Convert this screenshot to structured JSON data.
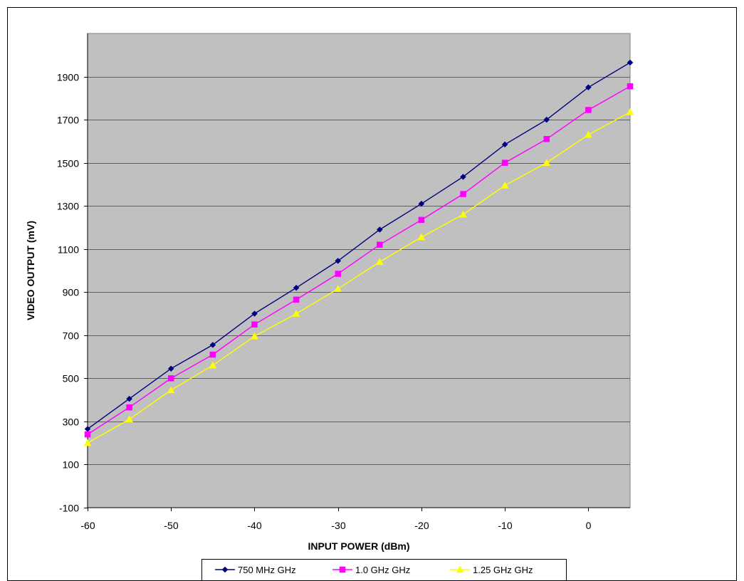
{
  "chart_data": {
    "type": "line",
    "title": "",
    "xlabel": "INPUT POWER (dBm)",
    "ylabel": "VIDEO OUTPUT (mV)",
    "xlim": [
      -60,
      5
    ],
    "ylim": [
      -100,
      2100
    ],
    "x_ticks": [
      -60,
      -50,
      -40,
      -30,
      -20,
      -10,
      0
    ],
    "y_ticks": [
      -100,
      100,
      300,
      500,
      700,
      900,
      1100,
      1300,
      1500,
      1700,
      1900
    ],
    "x_tick_labels": [
      "-60",
      "-50",
      "-40",
      "-30",
      "-20",
      "-10",
      "0"
    ],
    "y_tick_labels": [
      "-100",
      "100",
      "300",
      "500",
      "700",
      "900",
      "1100",
      "1300",
      "1500",
      "1700",
      "1900"
    ],
    "grid": "horizontal",
    "legend_position": "bottom",
    "plot_background": "#c0c0c0",
    "x": [
      -60,
      -55,
      -50,
      -45,
      -40,
      -35,
      -30,
      -25,
      -20,
      -15,
      -10,
      -5,
      0,
      5
    ],
    "series": [
      {
        "name": "750 MHz GHz",
        "color": "#000080",
        "marker": "diamond",
        "values": [
          265,
          405,
          545,
          655,
          800,
          920,
          1045,
          1190,
          1310,
          1435,
          1585,
          1700,
          1850,
          1965
        ]
      },
      {
        "name": "1.0 GHz GHz",
        "color": "#ff00ff",
        "marker": "square",
        "values": [
          240,
          365,
          500,
          610,
          750,
          865,
          985,
          1120,
          1235,
          1355,
          1500,
          1610,
          1745,
          1855
        ]
      },
      {
        "name": "1.25 GHz GHz",
        "color": "#ffff00",
        "marker": "triangle",
        "values": [
          200,
          310,
          445,
          560,
          695,
          800,
          915,
          1040,
          1155,
          1260,
          1395,
          1500,
          1630,
          1735
        ]
      }
    ]
  }
}
